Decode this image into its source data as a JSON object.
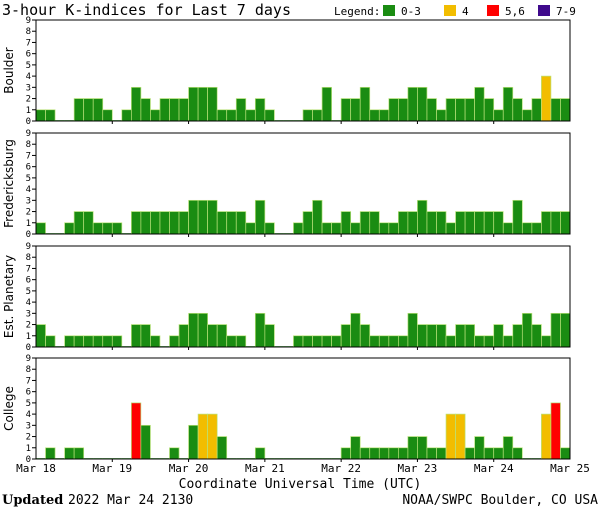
{
  "header": {
    "title": "3-hour K-indices for Last 7 days",
    "legend_title": "Legend:"
  },
  "legend": [
    {
      "label": "0-3",
      "color": "#1a8c12"
    },
    {
      "label": "4",
      "color": "#f2bd00"
    },
    {
      "label": "5,6",
      "color": "#ff0000"
    },
    {
      "label": "7-9",
      "color": "#3f0a8c"
    }
  ],
  "footer": {
    "updated_label": "Updated",
    "updated_value": "2022 Mar 24 2130",
    "credit": "NOAA/SWPC Boulder, CO USA"
  },
  "chart_data": {
    "type": "bar",
    "xlabel": "Coordinate Universal Time (UTC)",
    "x_ticks": [
      "Mar 18",
      "Mar 19",
      "Mar 20",
      "Mar 21",
      "Mar 22",
      "Mar 23",
      "Mar 24",
      "Mar 25"
    ],
    "ylim": [
      0,
      9
    ],
    "y_ticks": [
      0,
      1,
      2,
      3,
      4,
      5,
      6,
      7,
      8,
      9
    ],
    "bins_per_day": 8,
    "color_scale": {
      "0-3": "#1a8c12",
      "4": "#f2bd00",
      "5,6": "#ff0000",
      "7-9": "#3f0a8c"
    },
    "panels": [
      {
        "name": "Boulder",
        "values": [
          1,
          1,
          0,
          0,
          2,
          2,
          2,
          1,
          0,
          1,
          3,
          2,
          1,
          2,
          2,
          2,
          3,
          3,
          3,
          1,
          1,
          2,
          1,
          2,
          1,
          0,
          0,
          0,
          1,
          1,
          3,
          0,
          2,
          2,
          3,
          1,
          1,
          2,
          2,
          3,
          3,
          2,
          1,
          2,
          2,
          2,
          3,
          2,
          1,
          3,
          2,
          1,
          2,
          4,
          2,
          2,
          0
        ]
      },
      {
        "name": "Fredericksburg",
        "values": [
          1,
          0,
          0,
          1,
          2,
          2,
          1,
          1,
          1,
          0,
          2,
          2,
          2,
          2,
          2,
          2,
          3,
          3,
          3,
          2,
          2,
          2,
          1,
          3,
          1,
          0,
          0,
          1,
          2,
          3,
          1,
          1,
          2,
          1,
          2,
          2,
          1,
          1,
          2,
          2,
          3,
          2,
          2,
          1,
          2,
          2,
          2,
          2,
          2,
          1,
          3,
          1,
          1,
          2,
          2,
          2,
          1,
          0
        ]
      },
      {
        "name": "Est. Planetary",
        "values": [
          2,
          1,
          0,
          1,
          1,
          1,
          1,
          1,
          1,
          0,
          2,
          2,
          1,
          0,
          1,
          2,
          3,
          3,
          2,
          2,
          1,
          1,
          0,
          3,
          2,
          0,
          0,
          1,
          1,
          1,
          1,
          1,
          2,
          3,
          2,
          1,
          1,
          1,
          1,
          3,
          2,
          2,
          2,
          1,
          2,
          2,
          1,
          1,
          2,
          1,
          2,
          3,
          2,
          1,
          3,
          3,
          2,
          1
        ]
      },
      {
        "name": "College",
        "values": [
          0,
          1,
          0,
          1,
          1,
          0,
          0,
          0,
          0,
          0,
          5,
          3,
          0,
          0,
          1,
          0,
          3,
          4,
          4,
          2,
          0,
          0,
          0,
          1,
          0,
          0,
          0,
          0,
          0,
          0,
          0,
          0,
          1,
          2,
          1,
          1,
          1,
          1,
          1,
          2,
          2,
          1,
          1,
          4,
          4,
          1,
          2,
          1,
          1,
          2,
          1,
          0,
          0,
          4,
          5,
          1,
          1,
          0
        ]
      }
    ]
  }
}
